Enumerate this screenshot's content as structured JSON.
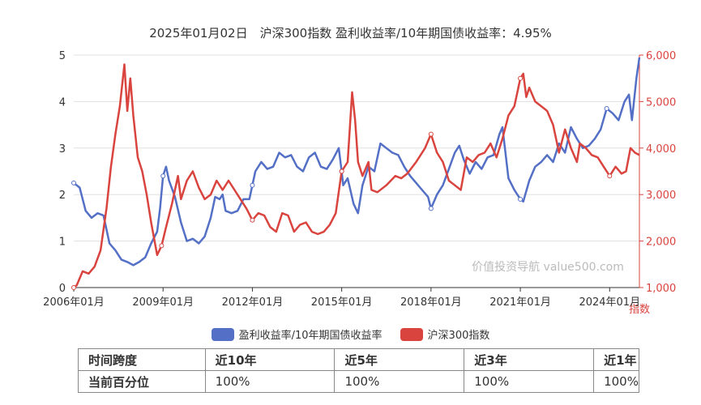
{
  "title": "2025年01月02日　沪深300指数 盈利收益率/10年期国债收益率：4.95%",
  "watermark": "价值投资导航 value500.com",
  "legend": [
    {
      "name": "盈利收益率/10年期国债收益率",
      "color": "#5470c6"
    },
    {
      "name": "沪深300指数",
      "color": "#d9443f"
    }
  ],
  "table": {
    "header": [
      "时间跨度",
      "近10年",
      "近5年",
      "近3年",
      "近1年"
    ],
    "row": [
      "当前百分位",
      "100%",
      "100%",
      "100%",
      "100%"
    ]
  },
  "chart_data": {
    "type": "line",
    "x_ticks": [
      "2006年01月",
      "2009年01月",
      "2012年01月",
      "2015年01月",
      "2018年01月",
      "2021年01月",
      "2024年01月"
    ],
    "x_range": [
      2006.0,
      2025.0
    ],
    "y_left": {
      "range": [
        0,
        5
      ],
      "ticks": [
        "0",
        "1",
        "2",
        "3",
        "4",
        "5"
      ],
      "color": "#5470c6"
    },
    "y_right": {
      "range": [
        1000,
        6000
      ],
      "ticks": [
        "1,000",
        "2,000",
        "3,000",
        "4,000",
        "5,000",
        "6,000"
      ],
      "label": "指数",
      "color": "#d9443f"
    },
    "series": [
      {
        "name": "盈利收益率/10年期国债收益率",
        "axis": "left",
        "points": [
          [
            2006.0,
            2.25
          ],
          [
            2006.2,
            2.15
          ],
          [
            2006.4,
            1.65
          ],
          [
            2006.6,
            1.5
          ],
          [
            2006.8,
            1.6
          ],
          [
            2007.0,
            1.55
          ],
          [
            2007.2,
            0.95
          ],
          [
            2007.4,
            0.8
          ],
          [
            2007.6,
            0.6
          ],
          [
            2007.8,
            0.55
          ],
          [
            2008.0,
            0.48
          ],
          [
            2008.2,
            0.55
          ],
          [
            2008.4,
            0.65
          ],
          [
            2008.6,
            0.95
          ],
          [
            2008.8,
            1.2
          ],
          [
            2008.9,
            1.7
          ],
          [
            2009.0,
            2.4
          ],
          [
            2009.1,
            2.6
          ],
          [
            2009.2,
            2.3
          ],
          [
            2009.4,
            1.95
          ],
          [
            2009.6,
            1.4
          ],
          [
            2009.8,
            1.0
          ],
          [
            2010.0,
            1.05
          ],
          [
            2010.2,
            0.95
          ],
          [
            2010.4,
            1.1
          ],
          [
            2010.6,
            1.5
          ],
          [
            2010.75,
            1.95
          ],
          [
            2010.9,
            1.9
          ],
          [
            2011.0,
            2.0
          ],
          [
            2011.1,
            1.65
          ],
          [
            2011.3,
            1.6
          ],
          [
            2011.5,
            1.65
          ],
          [
            2011.7,
            1.9
          ],
          [
            2011.9,
            1.9
          ],
          [
            2012.0,
            2.2
          ],
          [
            2012.1,
            2.5
          ],
          [
            2012.3,
            2.7
          ],
          [
            2012.5,
            2.55
          ],
          [
            2012.7,
            2.6
          ],
          [
            2012.9,
            2.9
          ],
          [
            2013.1,
            2.8
          ],
          [
            2013.3,
            2.85
          ],
          [
            2013.5,
            2.6
          ],
          [
            2013.7,
            2.5
          ],
          [
            2013.9,
            2.8
          ],
          [
            2014.1,
            2.9
          ],
          [
            2014.3,
            2.6
          ],
          [
            2014.5,
            2.55
          ],
          [
            2014.7,
            2.75
          ],
          [
            2014.9,
            3.0
          ],
          [
            2015.0,
            2.5
          ],
          [
            2015.05,
            2.2
          ],
          [
            2015.2,
            2.35
          ],
          [
            2015.4,
            1.8
          ],
          [
            2015.55,
            1.6
          ],
          [
            2015.7,
            2.2
          ],
          [
            2015.9,
            2.6
          ],
          [
            2016.1,
            2.5
          ],
          [
            2016.3,
            3.1
          ],
          [
            2016.5,
            3.0
          ],
          [
            2016.7,
            2.9
          ],
          [
            2016.9,
            2.85
          ],
          [
            2017.1,
            2.6
          ],
          [
            2017.3,
            2.4
          ],
          [
            2017.5,
            2.25
          ],
          [
            2017.7,
            2.1
          ],
          [
            2017.9,
            1.95
          ],
          [
            2018.0,
            1.7
          ],
          [
            2018.2,
            2.0
          ],
          [
            2018.4,
            2.2
          ],
          [
            2018.6,
            2.55
          ],
          [
            2018.8,
            2.9
          ],
          [
            2018.95,
            3.05
          ],
          [
            2019.1,
            2.75
          ],
          [
            2019.3,
            2.45
          ],
          [
            2019.5,
            2.7
          ],
          [
            2019.7,
            2.55
          ],
          [
            2019.9,
            2.8
          ],
          [
            2020.1,
            2.85
          ],
          [
            2020.3,
            3.3
          ],
          [
            2020.4,
            3.45
          ],
          [
            2020.5,
            2.9
          ],
          [
            2020.6,
            2.35
          ],
          [
            2020.8,
            2.1
          ],
          [
            2021.0,
            1.9
          ],
          [
            2021.1,
            1.85
          ],
          [
            2021.3,
            2.3
          ],
          [
            2021.5,
            2.6
          ],
          [
            2021.7,
            2.7
          ],
          [
            2021.9,
            2.85
          ],
          [
            2022.1,
            2.7
          ],
          [
            2022.3,
            3.1
          ],
          [
            2022.5,
            2.9
          ],
          [
            2022.7,
            3.45
          ],
          [
            2022.9,
            3.2
          ],
          [
            2023.1,
            3.0
          ],
          [
            2023.3,
            3.05
          ],
          [
            2023.5,
            3.2
          ],
          [
            2023.7,
            3.4
          ],
          [
            2023.9,
            3.85
          ],
          [
            2024.1,
            3.75
          ],
          [
            2024.3,
            3.6
          ],
          [
            2024.5,
            4.0
          ],
          [
            2024.65,
            4.15
          ],
          [
            2024.75,
            3.6
          ],
          [
            2024.9,
            4.5
          ],
          [
            2025.0,
            4.95
          ]
        ]
      },
      {
        "name": "沪深300指数",
        "axis": "right",
        "points": [
          [
            2006.0,
            1000
          ],
          [
            2006.1,
            1050
          ],
          [
            2006.3,
            1350
          ],
          [
            2006.5,
            1300
          ],
          [
            2006.7,
            1450
          ],
          [
            2006.9,
            1800
          ],
          [
            2007.1,
            2700
          ],
          [
            2007.25,
            3600
          ],
          [
            2007.4,
            4300
          ],
          [
            2007.55,
            4900
          ],
          [
            2007.7,
            5800
          ],
          [
            2007.8,
            4800
          ],
          [
            2007.9,
            5500
          ],
          [
            2008.0,
            4700
          ],
          [
            2008.15,
            3800
          ],
          [
            2008.3,
            3500
          ],
          [
            2008.45,
            3000
          ],
          [
            2008.6,
            2400
          ],
          [
            2008.8,
            1700
          ],
          [
            2008.95,
            1900
          ],
          [
            2009.1,
            2300
          ],
          [
            2009.3,
            2800
          ],
          [
            2009.5,
            3400
          ],
          [
            2009.6,
            2900
          ],
          [
            2009.8,
            3300
          ],
          [
            2010.0,
            3500
          ],
          [
            2010.2,
            3150
          ],
          [
            2010.4,
            2900
          ],
          [
            2010.6,
            3000
          ],
          [
            2010.8,
            3300
          ],
          [
            2011.0,
            3100
          ],
          [
            2011.2,
            3300
          ],
          [
            2011.4,
            3100
          ],
          [
            2011.6,
            2900
          ],
          [
            2011.8,
            2700
          ],
          [
            2012.0,
            2450
          ],
          [
            2012.2,
            2600
          ],
          [
            2012.4,
            2550
          ],
          [
            2012.6,
            2300
          ],
          [
            2012.8,
            2200
          ],
          [
            2013.0,
            2600
          ],
          [
            2013.2,
            2550
          ],
          [
            2013.4,
            2200
          ],
          [
            2013.6,
            2350
          ],
          [
            2013.8,
            2400
          ],
          [
            2014.0,
            2200
          ],
          [
            2014.2,
            2150
          ],
          [
            2014.4,
            2200
          ],
          [
            2014.6,
            2350
          ],
          [
            2014.8,
            2600
          ],
          [
            2015.0,
            3500
          ],
          [
            2015.2,
            3700
          ],
          [
            2015.35,
            5200
          ],
          [
            2015.45,
            4600
          ],
          [
            2015.55,
            3700
          ],
          [
            2015.7,
            3400
          ],
          [
            2015.9,
            3700
          ],
          [
            2016.0,
            3100
          ],
          [
            2016.2,
            3050
          ],
          [
            2016.5,
            3200
          ],
          [
            2016.8,
            3400
          ],
          [
            2017.0,
            3350
          ],
          [
            2017.2,
            3450
          ],
          [
            2017.5,
            3700
          ],
          [
            2017.8,
            4000
          ],
          [
            2018.0,
            4300
          ],
          [
            2018.2,
            3900
          ],
          [
            2018.4,
            3700
          ],
          [
            2018.6,
            3300
          ],
          [
            2018.8,
            3200
          ],
          [
            2019.0,
            3100
          ],
          [
            2019.2,
            3800
          ],
          [
            2019.4,
            3700
          ],
          [
            2019.6,
            3850
          ],
          [
            2019.8,
            3900
          ],
          [
            2020.0,
            4100
          ],
          [
            2020.2,
            3800
          ],
          [
            2020.4,
            4200
          ],
          [
            2020.6,
            4700
          ],
          [
            2020.8,
            4900
          ],
          [
            2021.0,
            5500
          ],
          [
            2021.1,
            5600
          ],
          [
            2021.2,
            5100
          ],
          [
            2021.3,
            5300
          ],
          [
            2021.5,
            5000
          ],
          [
            2021.7,
            4900
          ],
          [
            2021.9,
            4800
          ],
          [
            2022.1,
            4500
          ],
          [
            2022.3,
            3900
          ],
          [
            2022.5,
            4400
          ],
          [
            2022.7,
            4000
          ],
          [
            2022.9,
            3700
          ],
          [
            2023.0,
            4100
          ],
          [
            2023.2,
            4000
          ],
          [
            2023.4,
            3850
          ],
          [
            2023.6,
            3800
          ],
          [
            2023.8,
            3600
          ],
          [
            2024.0,
            3400
          ],
          [
            2024.2,
            3600
          ],
          [
            2024.4,
            3450
          ],
          [
            2024.55,
            3500
          ],
          [
            2024.7,
            4000
          ],
          [
            2024.85,
            3900
          ],
          [
            2025.0,
            3850
          ]
        ]
      }
    ]
  }
}
